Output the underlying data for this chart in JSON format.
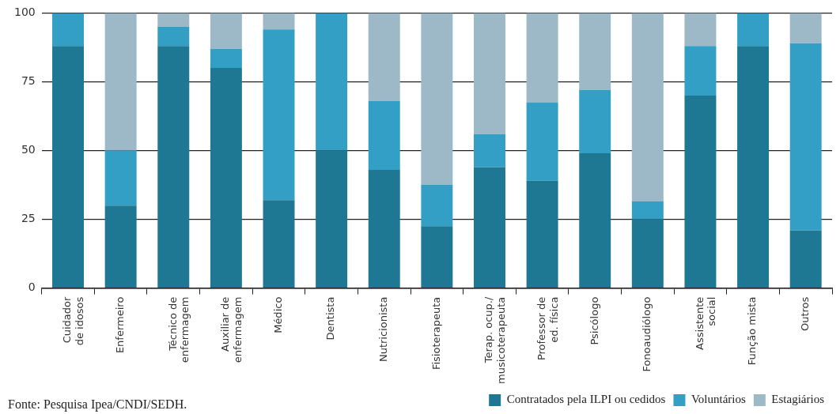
{
  "chart_data": {
    "type": "bar",
    "stacked": true,
    "categories": [
      "Cuidador\nde idosos",
      "Enfermeiro",
      "Técnico de\nenfermagem",
      "Auxiliar de\nenfermagem",
      "Médico",
      "Dentista",
      "Nutricionista",
      "Fisioterapeuta",
      "Terap. ocup./\nmusicoterapeuta",
      "Professor de\ned. física",
      "Psicólogo",
      "Fonoaudiólogo",
      "Assistente\nsocial",
      "Função mista",
      "Outros"
    ],
    "series": [
      {
        "name": "Contratados pela ILPI ou cedidos",
        "color": "#1f7893",
        "values": [
          88,
          30,
          88,
          80,
          32,
          50,
          43,
          22.5,
          44,
          39,
          49,
          25,
          70,
          88,
          21
        ]
      },
      {
        "name": "Voluntários",
        "color": "#339fc4",
        "values": [
          12,
          20,
          7,
          7,
          62,
          50,
          25,
          15,
          12,
          28.5,
          23,
          6.5,
          18,
          12,
          68
        ]
      },
      {
        "name": "Estagiários",
        "color": "#9db8c7",
        "values": [
          0,
          50,
          5,
          13,
          6,
          0,
          32,
          62.5,
          44,
          32.5,
          28,
          68.5,
          12,
          0,
          11
        ]
      }
    ],
    "ylim": [
      0,
      100
    ],
    "yticks": [
      0,
      25,
      50,
      75,
      100
    ],
    "grid": "y",
    "legend": "bottom right",
    "annotations": [
      "Fonte: Pesquisa Ipea/CNDI/SEDH."
    ]
  }
}
